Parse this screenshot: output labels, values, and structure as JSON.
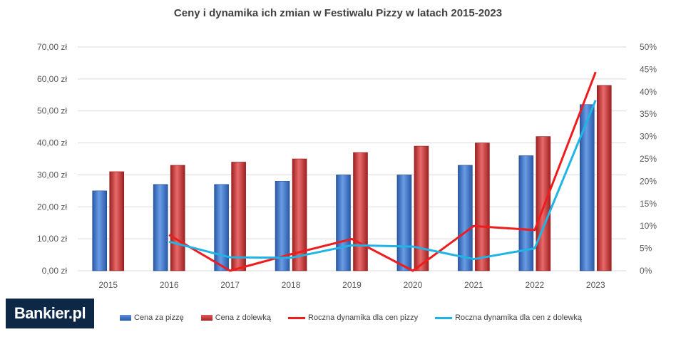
{
  "brand": {
    "logo_text": "Bankier.pl"
  },
  "chart_data": {
    "type": "bar",
    "title": "Ceny i dynamika ich zmian w Festiwalu Pizzy w latach 2015-2023",
    "categories": [
      "2015",
      "2016",
      "2017",
      "2018",
      "2019",
      "2020",
      "2021",
      "2022",
      "2023"
    ],
    "y_left": {
      "ylim": [
        0,
        70
      ],
      "ticks": [
        0,
        10,
        20,
        30,
        40,
        50,
        60,
        70
      ],
      "tick_labels": [
        "0,00 zł",
        "10,00 zł",
        "20,00 zł",
        "30,00 zł",
        "40,00 zł",
        "50,00 zł",
        "60,00 zł",
        "70,00 zł"
      ]
    },
    "y_right": {
      "ylim": [
        0,
        50
      ],
      "ticks": [
        0,
        5,
        10,
        15,
        20,
        25,
        30,
        35,
        40,
        45,
        50
      ],
      "tick_labels": [
        "0%",
        "5%",
        "10%",
        "15%",
        "20%",
        "25%",
        "30%",
        "35%",
        "40%",
        "45%",
        "50%"
      ]
    },
    "grid": true,
    "legend_position": "bottom",
    "series": [
      {
        "name": "Cena za pizzę",
        "kind": "bar",
        "axis": "left",
        "color": "#3a6fc4",
        "values": [
          25,
          27,
          27,
          28,
          30,
          30,
          33,
          36,
          52
        ]
      },
      {
        "name": "Cena z dolewką",
        "kind": "bar",
        "axis": "left",
        "color": "#c93a3a",
        "values": [
          31,
          33,
          34,
          35,
          37,
          39,
          40,
          42,
          58
        ]
      },
      {
        "name": "Roczna dynamika dla cen pizzy",
        "kind": "line",
        "axis": "right",
        "color": "#ee1c1c",
        "values": [
          null,
          8.0,
          0.0,
          3.7,
          7.1,
          0.0,
          10.0,
          9.1,
          44.4
        ]
      },
      {
        "name": "Roczna dynamika dla cen z dolewką",
        "kind": "line",
        "axis": "right",
        "color": "#1eb4e6",
        "values": [
          null,
          6.5,
          3.0,
          2.9,
          5.7,
          5.4,
          2.6,
          5.0,
          38.1
        ]
      }
    ]
  }
}
